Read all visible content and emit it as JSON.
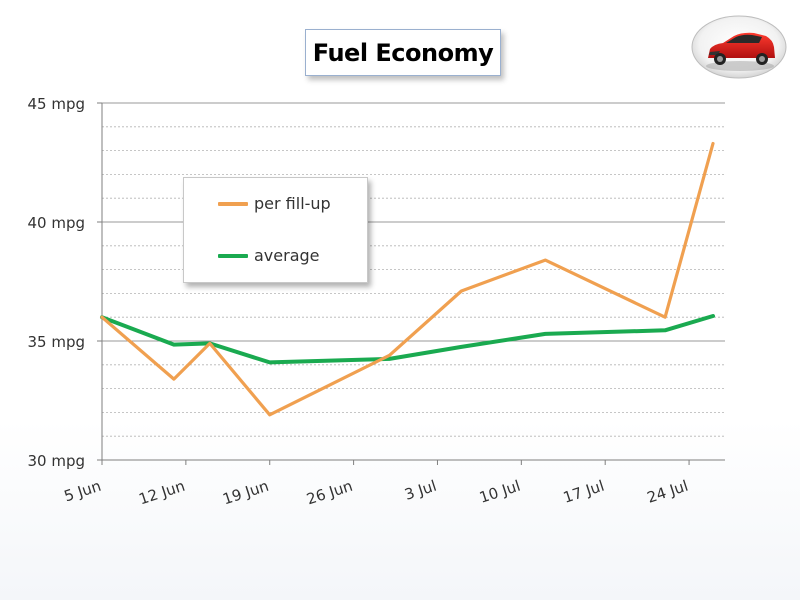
{
  "chart_data": {
    "type": "line",
    "title": "Fuel Economy",
    "x": [
      "5 Jun",
      "11 Jun",
      "14 Jun",
      "19 Jun",
      "29 Jun",
      "5 Jul",
      "12 Jul",
      "22 Jul",
      "26 Jul"
    ],
    "xticks": [
      "5 Jun",
      "12 Jun",
      "19 Jun",
      "26 Jun",
      "3 Jul",
      "10 Jul",
      "17 Jul",
      "24 Jul"
    ],
    "yticks": [
      "30 mpg",
      "35 mpg",
      "40 mpg",
      "45 mpg"
    ],
    "ylim": [
      30,
      45
    ],
    "xlim": [
      "5 Jun",
      "27 Jul"
    ],
    "grid": true,
    "legend": "center-left",
    "series": [
      {
        "name": "per fill-up",
        "color": "#f0a050",
        "values": [
          36.0,
          33.4,
          34.9,
          31.9,
          34.4,
          37.1,
          38.4,
          36.0,
          43.3
        ]
      },
      {
        "name": "average",
        "color": "#1aaa50",
        "values": [
          36.0,
          34.85,
          34.9,
          34.1,
          34.25,
          34.75,
          35.3,
          35.45,
          36.05
        ]
      }
    ]
  }
}
